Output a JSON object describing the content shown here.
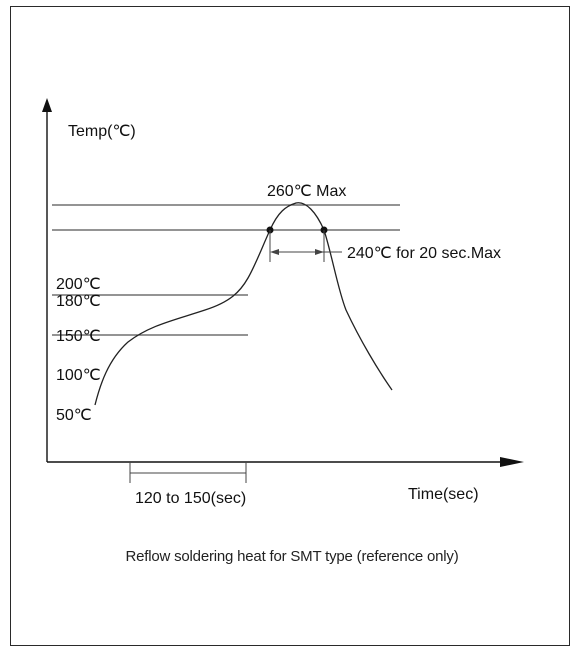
{
  "chart_data": {
    "type": "line",
    "title": "",
    "ylabel": "Temp(℃)",
    "xlabel": "Time(sec)",
    "y_tick_labels": [
      "200℃",
      "180℃",
      "150℃",
      "100℃",
      "50℃"
    ],
    "reference_lines": [
      {
        "label": "260℃ Max",
        "value": 260
      },
      {
        "label": "240℃ for 20 sec.Max",
        "value": 240
      }
    ],
    "preheat_span_label": "120 to 150(sec)",
    "series": [
      {
        "values_note": "",
        "x": [
          0,
          20,
          40,
          60,
          100,
          140,
          160,
          175,
          185,
          200,
          212,
          225,
          240,
          250,
          262
        ],
        "y": [
          50,
          115,
          150,
          160,
          175,
          195,
          240,
          255,
          260,
          255,
          240,
          195,
          140,
          120,
          105
        ]
      }
    ]
  },
  "caption": "Reflow soldering heat for SMT type (reference only)"
}
